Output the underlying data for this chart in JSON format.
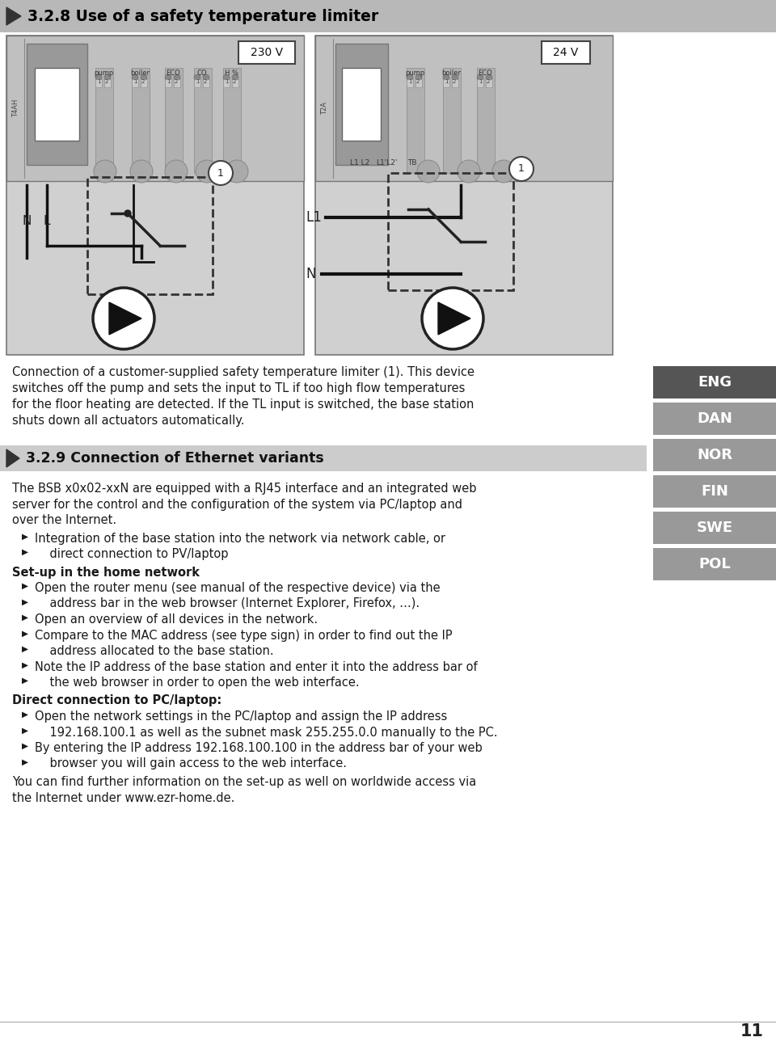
{
  "page_bg": "#ffffff",
  "header_bg": "#b8b8b8",
  "header_text": "3.2.8 Use of a safety temperature limiter",
  "header_text_color": "#000000",
  "section2_bg": "#cccccc",
  "section2_text": "3.2.9 Connection of Ethernet variants",
  "lang_tabs": [
    "ENG",
    "DAN",
    "NOR",
    "FIN",
    "SWE",
    "POL"
  ],
  "lang_tab_active_bg": "#555555",
  "lang_tab_inactive_bg": "#999999",
  "lang_tab_text_color": "#ffffff",
  "diagram_bg": "#cccccc",
  "diagram_bg2": "#e0e0e0",
  "page_number": "11",
  "text_color": "#1a1a1a",
  "font_size_body": 10.5,
  "font_size_header": 13.5,
  "font_size_section2": 12.5
}
